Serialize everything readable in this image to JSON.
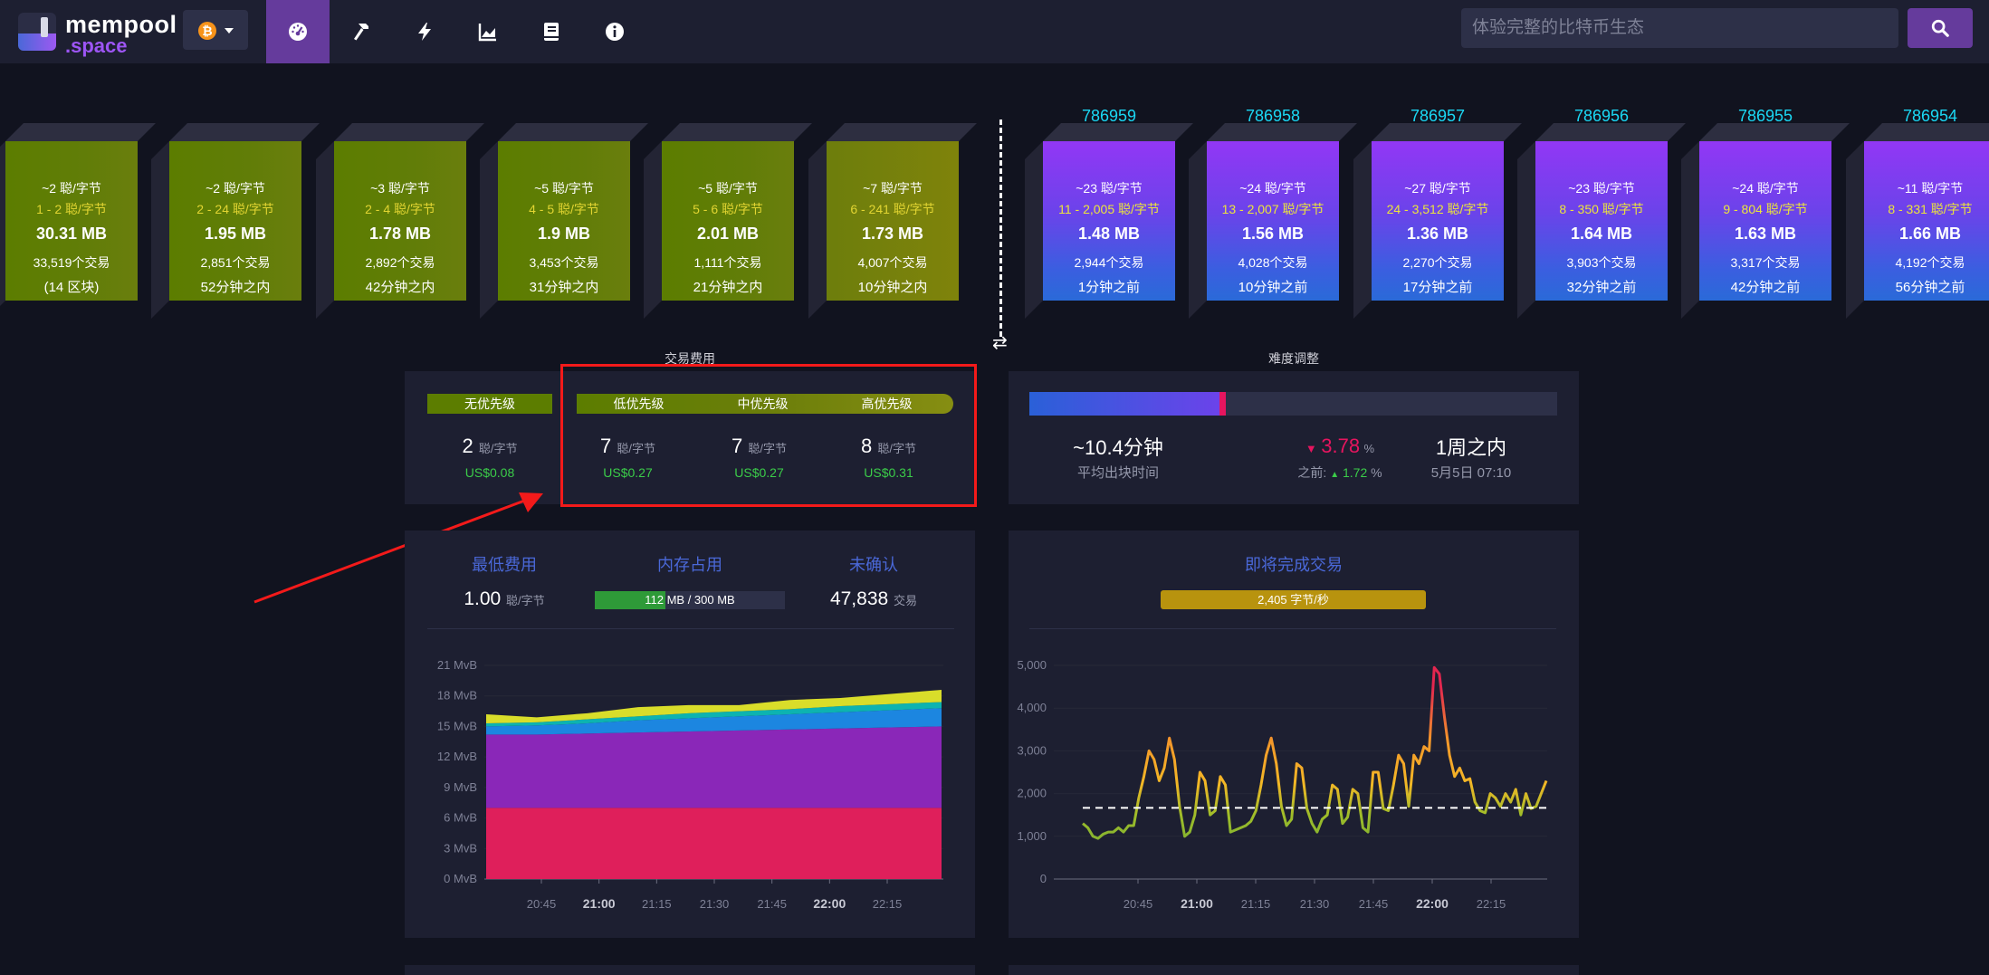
{
  "nav": {
    "logo_line1": "mempool",
    "logo_line2": ".space",
    "network": "bitcoin",
    "items": [
      {
        "icon": "dashboard-icon",
        "active": true
      },
      {
        "icon": "hammer-icon",
        "active": false
      },
      {
        "icon": "lightning-icon",
        "active": false
      },
      {
        "icon": "chart-icon",
        "active": false
      },
      {
        "icon": "book-icon",
        "active": false
      },
      {
        "icon": "info-icon",
        "active": false
      }
    ],
    "search_placeholder": "体验完整的比特币生态"
  },
  "mempool_blocks": [
    {
      "median": "~2 聪/字节",
      "range": "1 - 2 聪/字节",
      "size": "30.31 MB",
      "tx": "33,519个交易",
      "eta": "(14 区块)"
    },
    {
      "median": "~2 聪/字节",
      "range": "2 - 24 聪/字节",
      "size": "1.95 MB",
      "tx": "2,851个交易",
      "eta": "52分钟之内"
    },
    {
      "median": "~3 聪/字节",
      "range": "2 - 4 聪/字节",
      "size": "1.78 MB",
      "tx": "2,892个交易",
      "eta": "42分钟之内"
    },
    {
      "median": "~5 聪/字节",
      "range": "4 - 5 聪/字节",
      "size": "1.9 MB",
      "tx": "3,453个交易",
      "eta": "31分钟之内"
    },
    {
      "median": "~5 聪/字节",
      "range": "5 - 6 聪/字节",
      "size": "2.01 MB",
      "tx": "1,111个交易",
      "eta": "21分钟之内"
    },
    {
      "median": "~7 聪/字节",
      "range": "6 - 241 聪/字节",
      "size": "1.73 MB",
      "tx": "4,007个交易",
      "eta": "10分钟之内"
    }
  ],
  "mined_blocks": [
    {
      "height": "786959",
      "median": "~23 聪/字节",
      "range": "11 - 2,005 聪/字节",
      "size": "1.48 MB",
      "tx": "2,944个交易",
      "age": "1分钟之前"
    },
    {
      "height": "786958",
      "median": "~24 聪/字节",
      "range": "13 - 2,007 聪/字节",
      "size": "1.56 MB",
      "tx": "4,028个交易",
      "age": "10分钟之前"
    },
    {
      "height": "786957",
      "median": "~27 聪/字节",
      "range": "24 - 3,512 聪/字节",
      "size": "1.36 MB",
      "tx": "2,270个交易",
      "age": "17分钟之前"
    },
    {
      "height": "786956",
      "median": "~23 聪/字节",
      "range": "8 - 350 聪/字节",
      "size": "1.64 MB",
      "tx": "3,903个交易",
      "age": "32分钟之前"
    },
    {
      "height": "786955",
      "median": "~24 聪/字节",
      "range": "9 - 804 聪/字节",
      "size": "1.63 MB",
      "tx": "3,317个交易",
      "age": "42分钟之前"
    },
    {
      "height": "786954",
      "median": "~11 聪/字节",
      "range": "8 - 331 聪/字节",
      "size": "1.66 MB",
      "tx": "4,192个交易",
      "age": "56分钟之前"
    }
  ],
  "fees": {
    "title": "交易费用",
    "unit": "聪/字节",
    "priorities": [
      {
        "label": "无优先级",
        "value": "2",
        "usd": "US$0.08"
      },
      {
        "label": "低优先级",
        "value": "7",
        "usd": "US$0.27"
      },
      {
        "label": "中优先级",
        "value": "7",
        "usd": "US$0.27"
      },
      {
        "label": "高优先级",
        "value": "8",
        "usd": "US$0.31"
      }
    ]
  },
  "difficulty": {
    "title": "难度调整",
    "progress": 0.36,
    "avg_block_time": "~10.4分钟",
    "avg_block_time_label": "平均出块时间",
    "change": "3.78",
    "change_unit": "%",
    "prev_label": "之前:",
    "prev_change": "1.72",
    "prev_unit": "%",
    "eta": "1周之内",
    "eta_date": "5月5日 07:10"
  },
  "mempool_stats": {
    "min_fee_title": "最低费用",
    "min_fee_value": "1.00",
    "min_fee_unit": "聪/字节",
    "memory_title": "内存占用",
    "memory_label": "112 MB / 300 MB",
    "memory_fraction": 0.373,
    "unconfirmed_title": "未确认",
    "unconfirmed_value": "47,838",
    "unconfirmed_unit": "交易"
  },
  "incoming": {
    "title": "即将完成交易",
    "rate_label": "2,405 字节/秒"
  },
  "chart_data": [
    {
      "type": "area",
      "title": "",
      "y_ticks": [
        "0 MvB",
        "3 MvB",
        "6 MvB",
        "9 MvB",
        "12 MvB",
        "15 MvB",
        "18 MvB",
        "21 MvB"
      ],
      "ylim": [
        0,
        21
      ],
      "x_ticks": [
        {
          "label": "20:45",
          "bold": false
        },
        {
          "label": "21:00",
          "bold": true
        },
        {
          "label": "21:15",
          "bold": false
        },
        {
          "label": "21:30",
          "bold": false
        },
        {
          "label": "21:45",
          "bold": false
        },
        {
          "label": "22:00",
          "bold": true
        },
        {
          "label": "22:15",
          "bold": false
        }
      ],
      "series": [
        {
          "color": "#df1f5b",
          "values": [
            7,
            7,
            7,
            7,
            7,
            7,
            7,
            7,
            7,
            7
          ]
        },
        {
          "color": "#8a27b8",
          "values": [
            7.2,
            7.2,
            7.3,
            7.4,
            7.5,
            7.6,
            7.7,
            7.8,
            7.9,
            8.0
          ]
        },
        {
          "color": "#1c86e0",
          "values": [
            0.8,
            0.9,
            1.0,
            1.2,
            1.3,
            1.4,
            1.5,
            1.6,
            1.7,
            1.8
          ]
        },
        {
          "color": "#0db3b0",
          "values": [
            0.3,
            0.3,
            0.4,
            0.4,
            0.5,
            0.5,
            0.5,
            0.6,
            0.6,
            0.6
          ]
        },
        {
          "color": "#d9dd2a",
          "values": [
            0.9,
            0.5,
            0.6,
            0.9,
            0.8,
            0.6,
            0.9,
            0.8,
            1.0,
            1.2
          ]
        }
      ]
    },
    {
      "type": "line",
      "title": "",
      "y_ticks": [
        "0",
        "1,000",
        "2,000",
        "3,000",
        "4,000",
        "5,000"
      ],
      "ylim": [
        0,
        5000
      ],
      "x_ticks": [
        {
          "label": "20:45",
          "bold": false
        },
        {
          "label": "21:00",
          "bold": true
        },
        {
          "label": "21:15",
          "bold": false
        },
        {
          "label": "21:30",
          "bold": false
        },
        {
          "label": "21:45",
          "bold": false
        },
        {
          "label": "22:00",
          "bold": true
        },
        {
          "label": "22:15",
          "bold": false
        }
      ],
      "reference_line": 1667,
      "values": [
        1300,
        1200,
        1000,
        950,
        1050,
        1100,
        1100,
        1200,
        1100,
        1250,
        1250,
        1900,
        2400,
        3000,
        2800,
        2300,
        2600,
        3300,
        2800,
        1700,
        1000,
        1100,
        1500,
        2500,
        2300,
        1500,
        1600,
        2400,
        2200,
        1100,
        1150,
        1200,
        1250,
        1350,
        1600,
        2200,
        2900,
        3300,
        2700,
        1700,
        1250,
        1400,
        2700,
        2600,
        1650,
        1300,
        1100,
        1400,
        1500,
        2200,
        2100,
        1300,
        1450,
        2100,
        2000,
        1200,
        1100,
        2500,
        2500,
        1650,
        1600,
        2200,
        2900,
        2700,
        1700,
        2900,
        2700,
        3100,
        3000,
        4950,
        4800,
        3800,
        2900,
        2400,
        2600,
        2300,
        2350,
        1800,
        1600,
        1550,
        2000,
        1900,
        1700,
        2000,
        1800,
        2100,
        1500,
        2000,
        1650,
        1700,
        2000,
        2300
      ]
    }
  ]
}
